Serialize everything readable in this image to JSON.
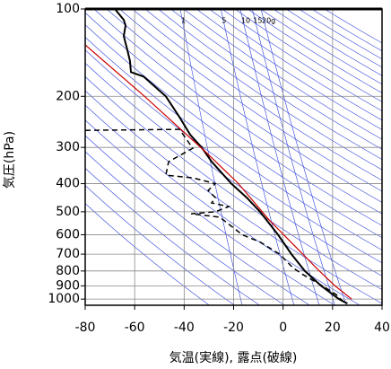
{
  "chart_data": {
    "type": "line",
    "xlabel": "気温(実線), 露点(破線)",
    "ylabel": "気圧(hPa)",
    "xlim": [
      -80,
      40
    ],
    "xticks": [
      -80,
      -60,
      -40,
      -20,
      0,
      20,
      40
    ],
    "ylim": [
      1050,
      100
    ],
    "yticks": [
      100,
      200,
      300,
      400,
      500,
      600,
      700,
      800,
      900,
      1000
    ],
    "ylog": true,
    "grid": true,
    "mixing_ratio_lines": [
      {
        "value": 1,
        "label": "1"
      },
      {
        "value": 5,
        "label": "5"
      },
      {
        "value": 10,
        "label": "10"
      },
      {
        "value": 15,
        "label": "15"
      },
      {
        "value": 20,
        "label": "20g"
      }
    ],
    "series": [
      {
        "color": "#000000",
        "line_style": "solid",
        "x": [
          -68,
          -64.4,
          -63.7,
          -64.4,
          -63,
          -61.9,
          -61.5,
          -56.4,
          -47.4,
          -42,
          -37.6,
          -32.9,
          -28.9,
          -20.9,
          -14.7,
          -9.3,
          -2,
          3.4,
          8.8,
          15.4,
          22.6,
          26
        ],
        "y": [
          100,
          109,
          114,
          124,
          138,
          151,
          165,
          171,
          200,
          235,
          271,
          300,
          336,
          400,
          447,
          500,
          600,
          700,
          800,
          900,
          1000,
          1035
        ]
      },
      {
        "color": "#000000",
        "line_style": "dashed",
        "x": [
          -80,
          -41.9,
          -36.5,
          -46.3,
          -47.4,
          -36.5,
          -27.4,
          -30.3,
          -27.4,
          -28.9,
          -22,
          -27.4,
          -37.2,
          -25.6,
          -19.4,
          -16.5,
          -9.3,
          -1.4,
          4,
          7.6,
          16.8,
          21.5,
          25
        ],
        "y": [
          262,
          260,
          302,
          336,
          374,
          382,
          400,
          422,
          447,
          466,
          480,
          500,
          508,
          522,
          574,
          600,
          636,
          700,
          780,
          819,
          910,
          965,
          1035
        ]
      },
      {
        "color": "#cc0000",
        "line_style": "solid",
        "x": [
          -80,
          -56,
          -31,
          -18,
          -5.7,
          5,
          14,
          21,
          27.7
        ],
        "y": [
          133,
          200,
          313,
          400,
          533,
          660,
          790,
          900,
          1000
        ]
      }
    ]
  }
}
